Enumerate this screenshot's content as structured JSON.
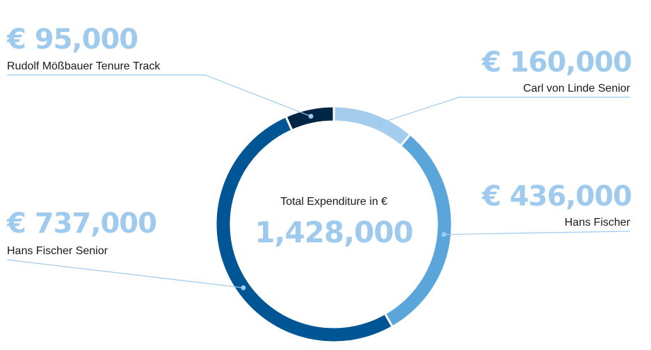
{
  "colors": {
    "accent_light": "#9ecaee",
    "separator": "#ffffff"
  },
  "chart_data": {
    "type": "pie",
    "style": "donut",
    "center_label": "Total Expenditure in €",
    "center_value": "1,428,000",
    "total": 1428000,
    "slices": [
      {
        "name": "Carl von Linde Senior",
        "label": "€ 160,000",
        "value": 160000,
        "color": "#a3cced"
      },
      {
        "name": "Hans Fischer",
        "label": "€ 436,000",
        "value": 436000,
        "color": "#5aa6db"
      },
      {
        "name": "Hans Fischer Senior",
        "label": "€ 737,000",
        "value": 737000,
        "color": "#005595"
      },
      {
        "name": "Rudolf Mößbauer Tenure Track",
        "label": "€ 95,000",
        "value": 95000,
        "color": "#012645"
      }
    ]
  }
}
